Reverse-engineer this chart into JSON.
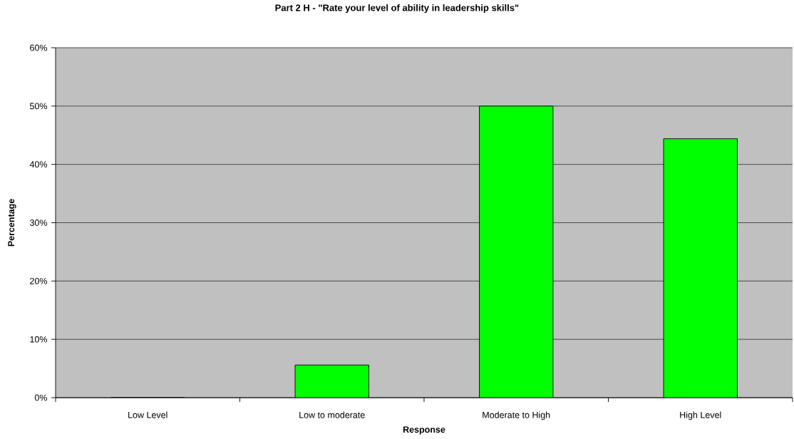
{
  "chart_data": {
    "type": "bar",
    "title": "Part 2 H - \"Rate your level of ability in leadership skills\"",
    "xlabel": "Response",
    "ylabel": "Percentage",
    "categories": [
      "Low Level",
      "Low to moderate",
      "Moderate to High",
      "High Level"
    ],
    "values": [
      0,
      5.6,
      50,
      44.4
    ],
    "color": "#00ff00",
    "ylim": [
      0,
      60
    ],
    "yticks": [
      {
        "value": 0,
        "label": "0%"
      },
      {
        "value": 10,
        "label": "10%"
      },
      {
        "value": 20,
        "label": "20%"
      },
      {
        "value": 30,
        "label": "30%"
      },
      {
        "value": 40,
        "label": "40%"
      },
      {
        "value": 50,
        "label": "50%"
      },
      {
        "value": 60,
        "label": "60%"
      }
    ],
    "grid": "y"
  }
}
